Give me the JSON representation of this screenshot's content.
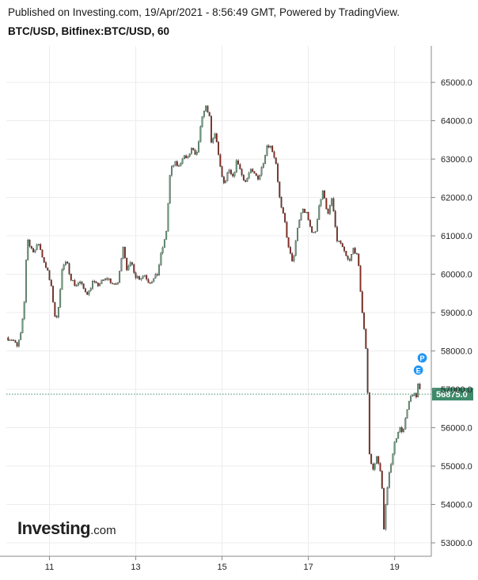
{
  "header": {
    "publisher": "Published on Investing.com, 19/Apr/2021 - 8:56:49 GMT, Powered by TradingView.",
    "symbol": "BTC/USD, Bitfinex:BTC/USD, 60"
  },
  "logo": {
    "brand": "Investing",
    "domain": ".com"
  },
  "colors": {
    "up": "#6a9f7e",
    "down": "#8b2a1e",
    "price_line": "#3d8a6a",
    "marker": "#2196f3"
  },
  "markers": [
    "E",
    "P"
  ],
  "chart_data": {
    "type": "candlestick",
    "x_ticks": [
      "11",
      "13",
      "15",
      "17",
      "19"
    ],
    "x_tick_day": [
      11,
      13,
      15,
      17,
      19
    ],
    "x_range_day": [
      10.0,
      19.85
    ],
    "y_ticks": [
      "53000.0",
      "54000.0",
      "55000.0",
      "56000.0",
      "57000.0",
      "58000.0",
      "59000.0",
      "60000.0",
      "61000.0",
      "62000.0",
      "63000.0",
      "64000.0",
      "65000.0"
    ],
    "y_tick_values": [
      53000,
      54000,
      55000,
      56000,
      57000,
      58000,
      59000,
      60000,
      61000,
      62000,
      63000,
      64000,
      65000
    ],
    "ylim": [
      52650,
      65950
    ],
    "last_price": 56875.0,
    "last_price_label": "56875.0",
    "path_points": [
      [
        10.0,
        58350
      ],
      [
        10.15,
        58300
      ],
      [
        10.25,
        58100
      ],
      [
        10.35,
        58500
      ],
      [
        10.42,
        59300
      ],
      [
        10.48,
        61000
      ],
      [
        10.55,
        60700
      ],
      [
        10.65,
        60600
      ],
      [
        10.75,
        60800
      ],
      [
        10.85,
        60400
      ],
      [
        10.95,
        60100
      ],
      [
        11.05,
        59600
      ],
      [
        11.15,
        58700
      ],
      [
        11.2,
        59100
      ],
      [
        11.3,
        60200
      ],
      [
        11.4,
        60300
      ],
      [
        11.5,
        59900
      ],
      [
        11.6,
        59700
      ],
      [
        11.7,
        59800
      ],
      [
        11.8,
        59600
      ],
      [
        11.9,
        59500
      ],
      [
        12.0,
        59800
      ],
      [
        12.1,
        59700
      ],
      [
        12.2,
        59800
      ],
      [
        12.35,
        59900
      ],
      [
        12.5,
        59700
      ],
      [
        12.6,
        59800
      ],
      [
        12.7,
        60800
      ],
      [
        12.8,
        60100
      ],
      [
        12.9,
        60300
      ],
      [
        13.0,
        59950
      ],
      [
        13.1,
        59900
      ],
      [
        13.2,
        60000
      ],
      [
        13.3,
        59800
      ],
      [
        13.4,
        59850
      ],
      [
        13.5,
        60000
      ],
      [
        13.6,
        60600
      ],
      [
        13.7,
        61000
      ],
      [
        13.8,
        62700
      ],
      [
        13.9,
        62900
      ],
      [
        14.0,
        62800
      ],
      [
        14.1,
        63100
      ],
      [
        14.2,
        63000
      ],
      [
        14.3,
        63300
      ],
      [
        14.4,
        63000
      ],
      [
        14.5,
        63800
      ],
      [
        14.6,
        64400
      ],
      [
        14.7,
        64200
      ],
      [
        14.75,
        63400
      ],
      [
        14.85,
        63700
      ],
      [
        14.95,
        62800
      ],
      [
        15.05,
        62300
      ],
      [
        15.15,
        62700
      ],
      [
        15.25,
        62500
      ],
      [
        15.35,
        63000
      ],
      [
        15.45,
        62600
      ],
      [
        15.55,
        62400
      ],
      [
        15.65,
        62700
      ],
      [
        15.75,
        62600
      ],
      [
        15.85,
        62500
      ],
      [
        15.95,
        62900
      ],
      [
        16.05,
        63400
      ],
      [
        16.15,
        63300
      ],
      [
        16.25,
        62900
      ],
      [
        16.35,
        61800
      ],
      [
        16.45,
        61400
      ],
      [
        16.55,
        60600
      ],
      [
        16.65,
        60300
      ],
      [
        16.75,
        61200
      ],
      [
        16.85,
        61700
      ],
      [
        16.95,
        61600
      ],
      [
        17.05,
        61200
      ],
      [
        17.15,
        61000
      ],
      [
        17.25,
        61800
      ],
      [
        17.35,
        62200
      ],
      [
        17.45,
        61500
      ],
      [
        17.55,
        62000
      ],
      [
        17.65,
        60900
      ],
      [
        17.75,
        60800
      ],
      [
        17.85,
        60500
      ],
      [
        17.95,
        60300
      ],
      [
        18.05,
        60700
      ],
      [
        18.15,
        60400
      ],
      [
        18.25,
        59000
      ],
      [
        18.35,
        57900
      ],
      [
        18.42,
        55200
      ],
      [
        18.5,
        54900
      ],
      [
        18.6,
        55300
      ],
      [
        18.7,
        54600
      ],
      [
        18.75,
        53400
      ],
      [
        18.8,
        54100
      ],
      [
        18.9,
        55000
      ],
      [
        19.0,
        55600
      ],
      [
        19.1,
        56000
      ],
      [
        19.2,
        55900
      ],
      [
        19.3,
        56500
      ],
      [
        19.4,
        56900
      ],
      [
        19.5,
        56800
      ],
      [
        19.55,
        57200
      ],
      [
        19.62,
        56875
      ]
    ]
  }
}
